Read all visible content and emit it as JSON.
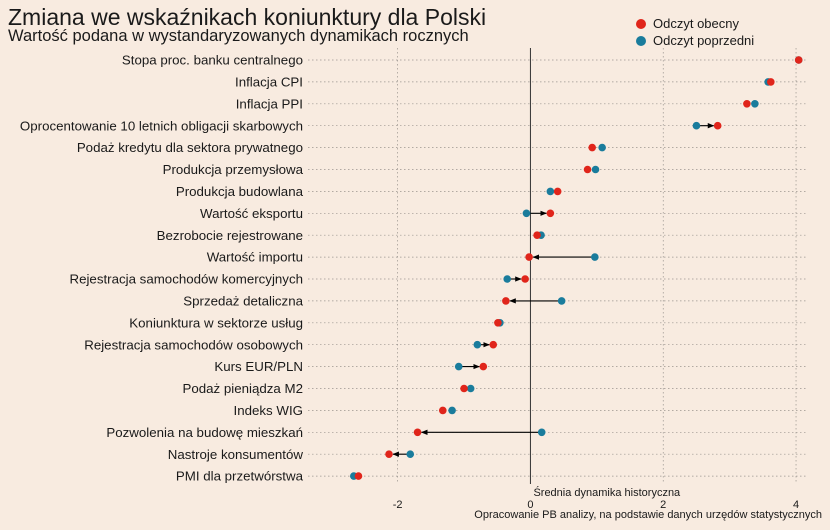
{
  "title": "Zmiana we wskaźnikach koniunktury dla Polski",
  "subtitle": "Wartość podana w wystandaryzowanych dynamikach rocznych",
  "caption": "Opracowanie  PB analizy, na podstawie danych urzędów statystycznych",
  "colors": {
    "background": "#f8ebe0",
    "current": "#e0251b",
    "previous": "#1a7c9c",
    "arrow": "#000000",
    "grid": "#9a948e",
    "zero_line": "#333333"
  },
  "chart_data": {
    "type": "dumbbell-arrow",
    "xlim": [
      -3.35,
      4.15
    ],
    "x_ticks": [
      -2,
      0,
      2,
      4
    ],
    "x_tick_labels": [
      "-2",
      "0",
      "2",
      "4"
    ],
    "zero_line_label": "Średnia dynamika historyczna",
    "grid": "dotted",
    "legend_position": "top-right",
    "series": [
      {
        "key": "current",
        "name": "Odczyt obecny"
      },
      {
        "key": "previous",
        "name": "Odczyt poprzedni"
      }
    ],
    "categories": [
      "Stopa proc. banku centralnego",
      "Inflacja CPI",
      "Inflacja PPI",
      "Oprocentowanie 10 letnich obligacji skarbowych",
      "Podaż kredytu dla sektora prywatnego",
      "Produkcja przemysłowa",
      "Produkcja budowlana",
      "Wartość eksportu",
      "Bezrobocie rejestrowane",
      "Wartość importu",
      "Rejestracja samochodów komercyjnych",
      "Sprzedaż detaliczna",
      "Koniunktura w sektorze usług",
      "Rejestracja samochodów osobowych",
      "Kurs EUR/PLN",
      "Podaż pieniądza M2",
      "Indeks WIG",
      "Pozwolenia na budowę mieszkań",
      "Nastroje konsumentów",
      "PMI dla przetwórstwa"
    ],
    "current": [
      4.04,
      3.62,
      3.26,
      2.82,
      0.93,
      0.86,
      0.41,
      0.3,
      0.1,
      -0.02,
      -0.08,
      -0.37,
      -0.49,
      -0.56,
      -0.71,
      -1.0,
      -1.32,
      -1.7,
      -2.13,
      -2.59
    ],
    "previous": [
      4.04,
      3.58,
      3.38,
      2.5,
      1.08,
      0.98,
      0.3,
      -0.06,
      0.16,
      0.97,
      -0.35,
      0.47,
      -0.46,
      -0.8,
      -1.08,
      -0.9,
      -1.18,
      0.17,
      -1.81,
      -2.66
    ]
  }
}
